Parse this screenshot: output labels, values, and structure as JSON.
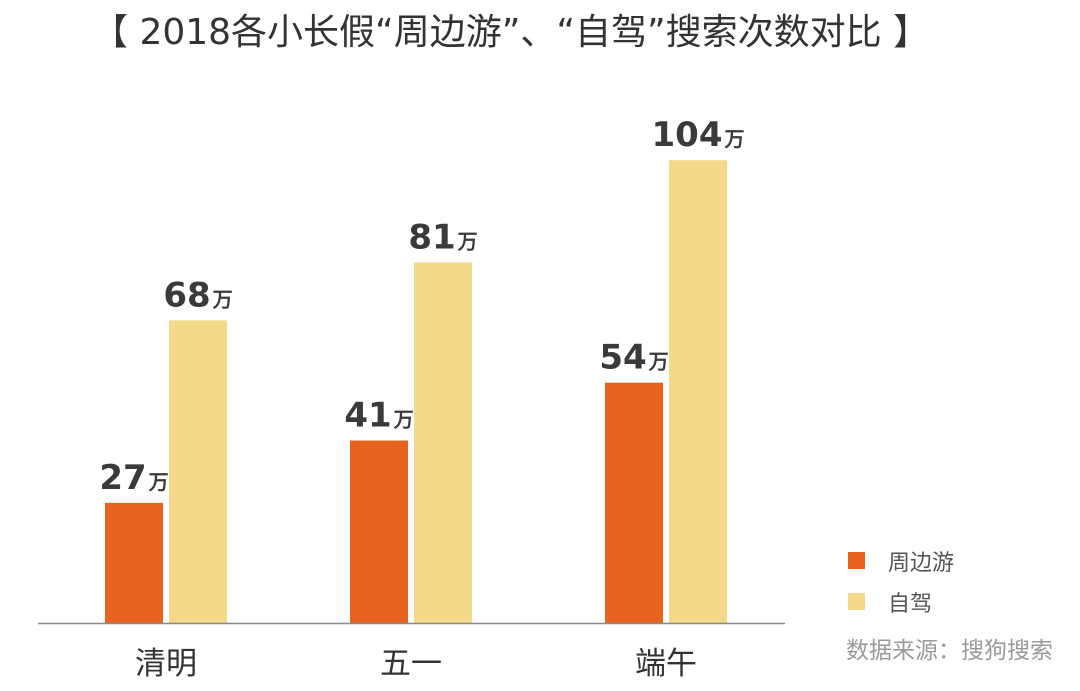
{
  "chart_data": {
    "type": "bar",
    "title": "【 2018各小长假“周边游”、“自驾”搜索次数对比 】",
    "categories": [
      "清明",
      "五一",
      "端午"
    ],
    "series": [
      {
        "name": "周边游",
        "values": [
          27,
          41,
          54
        ],
        "color": "#E8641E"
      },
      {
        "name": "自驾",
        "values": [
          68,
          81,
          104
        ],
        "color": "#F5D98A"
      }
    ],
    "value_unit": "万",
    "ylim": [
      0,
      110
    ],
    "grid": false,
    "legend_position": "bottom-right"
  },
  "source_note": "数据来源：搜狗搜索"
}
